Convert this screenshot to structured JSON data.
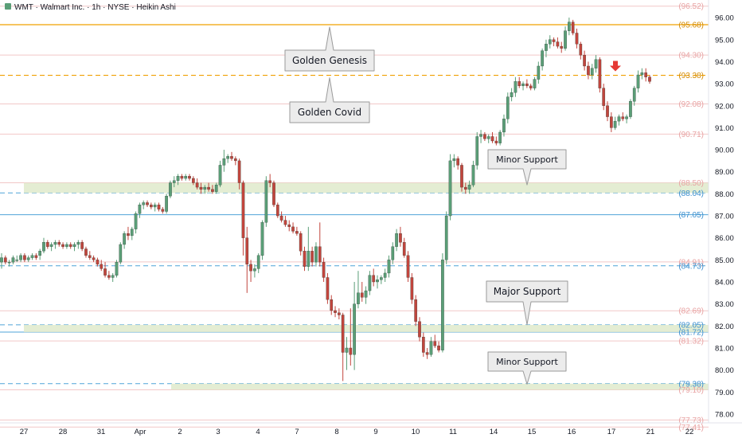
{
  "header": {
    "title": "WMT · Walmart Inc. · 1h · NYSE · Heikin Ashi"
  },
  "colors": {
    "up": "#5a9e77",
    "down": "#c2453d",
    "golden": "#f0a000",
    "blue": "#4fa3d8",
    "pink_line": "#f2c7c7",
    "zone": "#dfeacb",
    "callout_bg": "#ececec",
    "callout_border": "#9a9a9a"
  },
  "chart_data": {
    "type": "candlestick",
    "title": "WMT · Walmart Inc. · 1h · NYSE · Heikin Ashi",
    "ylim": [
      77.6,
      96.8
    ],
    "y_ticks": [
      "96.00",
      "95.00",
      "94.00",
      "93.00",
      "92.00",
      "91.00",
      "90.00",
      "89.00",
      "88.00",
      "87.00",
      "86.00",
      "85.00",
      "84.00",
      "83.00",
      "82.00",
      "81.00",
      "80.00",
      "79.00",
      "78.00"
    ],
    "x_tick_labels": [
      "27",
      "28",
      "31",
      "Apr",
      "2",
      "3",
      "4",
      "7",
      "8",
      "9",
      "10",
      "11",
      "14",
      "15",
      "16",
      "17",
      "21",
      "22"
    ],
    "candles": [
      [
        84.9,
        85.3,
        84.6,
        85.1
      ],
      [
        85.1,
        85.2,
        84.8,
        84.9
      ],
      [
        84.9,
        85.0,
        84.7,
        84.9
      ],
      [
        84.9,
        85.2,
        84.8,
        85.1
      ],
      [
        85.0,
        85.2,
        84.9,
        85.0
      ],
      [
        85.0,
        85.3,
        84.9,
        85.2
      ],
      [
        85.2,
        85.3,
        84.9,
        85.0
      ],
      [
        85.0,
        85.2,
        84.9,
        85.1
      ],
      [
        85.1,
        85.3,
        85.0,
        85.2
      ],
      [
        85.2,
        85.3,
        85.0,
        85.1
      ],
      [
        85.2,
        85.5,
        85.0,
        85.4
      ],
      [
        85.4,
        86.0,
        85.3,
        85.8
      ],
      [
        85.8,
        85.9,
        85.5,
        85.6
      ],
      [
        85.6,
        85.8,
        85.4,
        85.7
      ],
      [
        85.7,
        85.9,
        85.5,
        85.8
      ],
      [
        85.8,
        85.9,
        85.6,
        85.7
      ],
      [
        85.7,
        85.8,
        85.5,
        85.6
      ],
      [
        85.6,
        85.8,
        85.5,
        85.7
      ],
      [
        85.7,
        85.8,
        85.5,
        85.6
      ],
      [
        85.6,
        85.8,
        85.4,
        85.7
      ],
      [
        85.7,
        85.9,
        85.5,
        85.8
      ],
      [
        85.8,
        85.9,
        85.4,
        85.5
      ],
      [
        85.5,
        85.6,
        85.1,
        85.2
      ],
      [
        85.2,
        85.4,
        85.0,
        85.1
      ],
      [
        85.1,
        85.2,
        84.9,
        85.0
      ],
      [
        85.0,
        85.1,
        84.7,
        84.8
      ],
      [
        84.8,
        85.0,
        84.5,
        84.6
      ],
      [
        84.6,
        84.9,
        84.2,
        84.3
      ],
      [
        84.3,
        84.5,
        84.1,
        84.2
      ],
      [
        84.2,
        84.4,
        84.0,
        84.3
      ],
      [
        84.3,
        85.0,
        84.2,
        84.9
      ],
      [
        84.9,
        85.8,
        84.8,
        85.7
      ],
      [
        85.7,
        86.3,
        85.5,
        86.2
      ],
      [
        86.2,
        86.5,
        85.9,
        86.1
      ],
      [
        86.1,
        86.5,
        85.9,
        86.4
      ],
      [
        86.4,
        87.2,
        86.2,
        87.1
      ],
      [
        87.1,
        87.6,
        86.9,
        87.5
      ],
      [
        87.5,
        87.7,
        87.3,
        87.6
      ],
      [
        87.6,
        87.7,
        87.4,
        87.5
      ],
      [
        87.5,
        87.6,
        87.3,
        87.4
      ],
      [
        87.4,
        87.6,
        87.2,
        87.5
      ],
      [
        87.5,
        87.6,
        87.2,
        87.3
      ],
      [
        87.3,
        87.4,
        87.1,
        87.2
      ],
      [
        87.2,
        88.0,
        87.1,
        87.9
      ],
      [
        87.9,
        88.6,
        87.8,
        88.5
      ],
      [
        88.5,
        88.8,
        88.3,
        88.6
      ],
      [
        88.6,
        88.9,
        88.4,
        88.8
      ],
      [
        88.8,
        88.9,
        88.6,
        88.7
      ],
      [
        88.7,
        88.9,
        88.6,
        88.8
      ],
      [
        88.8,
        88.9,
        88.6,
        88.7
      ],
      [
        88.7,
        88.8,
        88.4,
        88.5
      ],
      [
        88.5,
        88.7,
        88.2,
        88.3
      ],
      [
        88.3,
        88.5,
        88.0,
        88.2
      ],
      [
        88.2,
        88.4,
        88.0,
        88.3
      ],
      [
        88.3,
        88.5,
        88.1,
        88.2
      ],
      [
        88.2,
        88.4,
        88.0,
        88.1
      ],
      [
        88.1,
        88.5,
        88.0,
        88.4
      ],
      [
        88.4,
        89.5,
        88.3,
        89.3
      ],
      [
        89.3,
        90.0,
        89.0,
        89.6
      ],
      [
        89.6,
        89.8,
        89.4,
        89.7
      ],
      [
        89.7,
        89.9,
        89.5,
        89.6
      ],
      [
        89.6,
        89.7,
        89.3,
        89.5
      ],
      [
        89.5,
        89.6,
        88.2,
        88.5
      ],
      [
        88.5,
        88.6,
        85.2,
        86.0
      ],
      [
        86.0,
        86.5,
        83.5,
        84.8
      ],
      [
        84.8,
        85.0,
        84.0,
        84.5
      ],
      [
        84.5,
        84.8,
        84.2,
        84.6
      ],
      [
        84.6,
        85.3,
        84.4,
        85.2
      ],
      [
        85.2,
        86.8,
        85.0,
        86.7
      ],
      [
        86.7,
        88.8,
        86.5,
        88.6
      ],
      [
        88.6,
        88.9,
        88.3,
        88.5
      ],
      [
        88.5,
        88.6,
        87.4,
        87.5
      ],
      [
        87.5,
        87.6,
        86.9,
        87.0
      ],
      [
        87.0,
        87.2,
        86.7,
        86.8
      ],
      [
        86.8,
        87.0,
        86.5,
        86.6
      ],
      [
        86.6,
        86.8,
        86.3,
        86.5
      ],
      [
        86.5,
        86.7,
        86.2,
        86.3
      ],
      [
        86.3,
        86.5,
        86.1,
        86.2
      ],
      [
        86.2,
        86.3,
        85.2,
        85.4
      ],
      [
        85.4,
        85.6,
        84.5,
        84.7
      ],
      [
        84.7,
        86.5,
        84.5,
        85.4
      ],
      [
        85.4,
        85.6,
        84.7,
        84.9
      ],
      [
        84.9,
        85.8,
        84.7,
        85.6
      ],
      [
        85.6,
        86.7,
        84.7,
        84.9
      ],
      [
        84.9,
        85.1,
        84.0,
        84.2
      ],
      [
        84.2,
        84.4,
        83.0,
        83.2
      ],
      [
        83.2,
        83.4,
        82.5,
        82.7
      ],
      [
        82.7,
        82.9,
        82.4,
        82.6
      ],
      [
        82.6,
        82.8,
        82.3,
        82.5
      ],
      [
        82.5,
        82.6,
        79.5,
        80.8
      ],
      [
        80.8,
        81.5,
        80.0,
        81.0
      ],
      [
        81.0,
        82.8,
        80.2,
        80.7
      ],
      [
        80.7,
        84.0,
        80.0,
        83.0
      ],
      [
        83.0,
        84.5,
        82.8,
        83.5
      ],
      [
        83.5,
        84.0,
        83.1,
        83.3
      ],
      [
        83.3,
        83.8,
        83.0,
        83.6
      ],
      [
        83.6,
        84.5,
        83.4,
        84.3
      ],
      [
        84.3,
        84.6,
        83.8,
        84.0
      ],
      [
        84.0,
        84.3,
        83.7,
        84.1
      ],
      [
        84.1,
        84.3,
        83.9,
        84.2
      ],
      [
        84.2,
        84.6,
        84.0,
        84.4
      ],
      [
        84.4,
        85.2,
        84.2,
        85.0
      ],
      [
        85.0,
        85.8,
        84.8,
        85.6
      ],
      [
        85.6,
        86.4,
        85.4,
        86.2
      ],
      [
        86.2,
        86.5,
        85.6,
        85.8
      ],
      [
        85.8,
        86.0,
        85.1,
        85.2
      ],
      [
        85.2,
        85.4,
        84.0,
        84.2
      ],
      [
        84.2,
        84.4,
        83.0,
        83.2
      ],
      [
        83.2,
        83.4,
        82.0,
        82.2
      ],
      [
        82.2,
        82.4,
        81.3,
        81.5
      ],
      [
        81.5,
        81.7,
        80.6,
        80.8
      ],
      [
        80.8,
        81.0,
        80.5,
        80.7
      ],
      [
        80.7,
        81.5,
        80.6,
        81.3
      ],
      [
        81.3,
        81.6,
        81.0,
        81.1
      ],
      [
        81.1,
        81.3,
        80.8,
        80.9
      ],
      [
        80.9,
        85.3,
        80.8,
        85.0
      ],
      [
        85.0,
        87.2,
        84.8,
        87.0
      ],
      [
        87.0,
        89.8,
        86.8,
        89.5
      ],
      [
        89.5,
        89.8,
        89.2,
        89.6
      ],
      [
        89.6,
        89.7,
        89.1,
        89.3
      ],
      [
        89.3,
        89.4,
        88.1,
        88.3
      ],
      [
        88.3,
        88.5,
        88.0,
        88.2
      ],
      [
        88.2,
        88.6,
        88.0,
        88.4
      ],
      [
        88.4,
        89.5,
        88.3,
        89.3
      ],
      [
        89.3,
        90.8,
        89.1,
        90.6
      ],
      [
        90.6,
        90.9,
        90.3,
        90.7
      ],
      [
        90.7,
        90.8,
        90.4,
        90.5
      ],
      [
        90.5,
        90.7,
        90.3,
        90.6
      ],
      [
        90.6,
        90.8,
        90.3,
        90.4
      ],
      [
        90.4,
        90.6,
        90.2,
        90.3
      ],
      [
        90.3,
        90.9,
        90.2,
        90.8
      ],
      [
        90.8,
        91.6,
        90.6,
        91.4
      ],
      [
        91.4,
        92.6,
        91.2,
        92.4
      ],
      [
        92.4,
        92.8,
        92.2,
        92.6
      ],
      [
        92.6,
        93.3,
        92.4,
        93.1
      ],
      [
        93.1,
        93.3,
        92.8,
        92.9
      ],
      [
        92.9,
        93.1,
        92.7,
        93.0
      ],
      [
        93.0,
        93.2,
        92.8,
        92.9
      ],
      [
        92.9,
        93.0,
        92.7,
        92.8
      ],
      [
        92.8,
        93.3,
        92.7,
        93.2
      ],
      [
        93.2,
        94.0,
        93.0,
        93.8
      ],
      [
        93.8,
        94.6,
        93.6,
        94.5
      ],
      [
        94.5,
        95.0,
        94.2,
        94.8
      ],
      [
        94.8,
        95.2,
        94.6,
        95.0
      ],
      [
        95.0,
        95.1,
        94.7,
        94.9
      ],
      [
        94.9,
        95.1,
        94.6,
        94.7
      ],
      [
        94.7,
        94.9,
        94.4,
        94.6
      ],
      [
        94.6,
        95.6,
        94.5,
        95.4
      ],
      [
        95.4,
        96.0,
        95.2,
        95.8
      ],
      [
        95.8,
        95.9,
        95.2,
        95.3
      ],
      [
        95.3,
        95.5,
        94.6,
        94.8
      ],
      [
        94.8,
        94.9,
        94.1,
        94.3
      ],
      [
        94.3,
        94.5,
        93.6,
        93.8
      ],
      [
        93.8,
        94.0,
        93.2,
        93.4
      ],
      [
        93.4,
        93.9,
        93.2,
        93.7
      ],
      [
        93.7,
        94.3,
        93.5,
        94.1
      ],
      [
        94.1,
        94.2,
        92.6,
        92.8
      ],
      [
        92.8,
        93.0,
        91.8,
        92.0
      ],
      [
        92.0,
        92.2,
        91.3,
        91.5
      ],
      [
        91.5,
        91.7,
        90.8,
        91.0
      ],
      [
        91.0,
        91.5,
        90.9,
        91.3
      ],
      [
        91.3,
        91.6,
        91.1,
        91.5
      ],
      [
        91.5,
        91.7,
        91.3,
        91.4
      ],
      [
        91.4,
        91.6,
        91.2,
        91.5
      ],
      [
        91.5,
        92.3,
        91.4,
        92.2
      ],
      [
        92.2,
        92.9,
        92.0,
        92.8
      ],
      [
        92.8,
        93.6,
        92.6,
        93.4
      ],
      [
        93.4,
        93.7,
        93.2,
        93.5
      ],
      [
        93.5,
        93.7,
        93.1,
        93.3
      ],
      [
        93.3,
        93.4,
        93.0,
        93.1
      ]
    ],
    "levels": [
      {
        "value": 96.52,
        "label": "(96.52)",
        "kind": "pink"
      },
      {
        "value": 95.68,
        "label": "(95.68)",
        "kind": "golden_solid"
      },
      {
        "value": 94.3,
        "label": "(94.30)",
        "kind": "pink"
      },
      {
        "value": 93.38,
        "label": "(93.38)",
        "kind": "golden_dash"
      },
      {
        "value": 92.08,
        "label": "(92.08)",
        "kind": "pink"
      },
      {
        "value": 90.71,
        "label": "(90.71)",
        "kind": "pink"
      },
      {
        "value": 88.5,
        "label": "(88.50)",
        "kind": "pink"
      },
      {
        "value": 88.04,
        "label": "(88.04)",
        "kind": "blue_dash"
      },
      {
        "value": 87.05,
        "label": "(87.05)",
        "kind": "blue_solid"
      },
      {
        "value": 84.91,
        "label": "(84.91)",
        "kind": "pink"
      },
      {
        "value": 84.73,
        "label": "(84.73)",
        "kind": "blue_dash"
      },
      {
        "value": 82.69,
        "label": "(82.69)",
        "kind": "pink"
      },
      {
        "value": 82.05,
        "label": "(82.05)",
        "kind": "blue_dash"
      },
      {
        "value": 81.72,
        "label": "(81.72)",
        "kind": "blue_solid"
      },
      {
        "value": 81.32,
        "label": "(81.32)",
        "kind": "pink"
      },
      {
        "value": 79.38,
        "label": "(79.38)",
        "kind": "blue_dash"
      },
      {
        "value": 79.1,
        "label": "(79.10)",
        "kind": "pink"
      },
      {
        "value": 77.73,
        "label": "(77.73)",
        "kind": "pink"
      },
      {
        "value": 77.41,
        "label": "(77.41)",
        "kind": "pink"
      }
    ],
    "zones": [
      {
        "top": 88.5,
        "bottom": 88.04
      },
      {
        "top": 82.05,
        "bottom": 81.72
      },
      {
        "top": 79.38,
        "bottom": 79.1
      }
    ],
    "callouts": [
      {
        "text": "Golden Genesis",
        "pointer_value": 95.68
      },
      {
        "text": "Golden Covid",
        "pointer_value": 93.38
      },
      {
        "text": "Minor Support",
        "pointer_value": 88.3
      },
      {
        "text": "Major Support",
        "pointer_value": 81.95
      },
      {
        "text": "Minor Support",
        "pointer_value": 79.25
      }
    ],
    "marker": {
      "type": "down-arrow",
      "value": 93.6
    }
  }
}
